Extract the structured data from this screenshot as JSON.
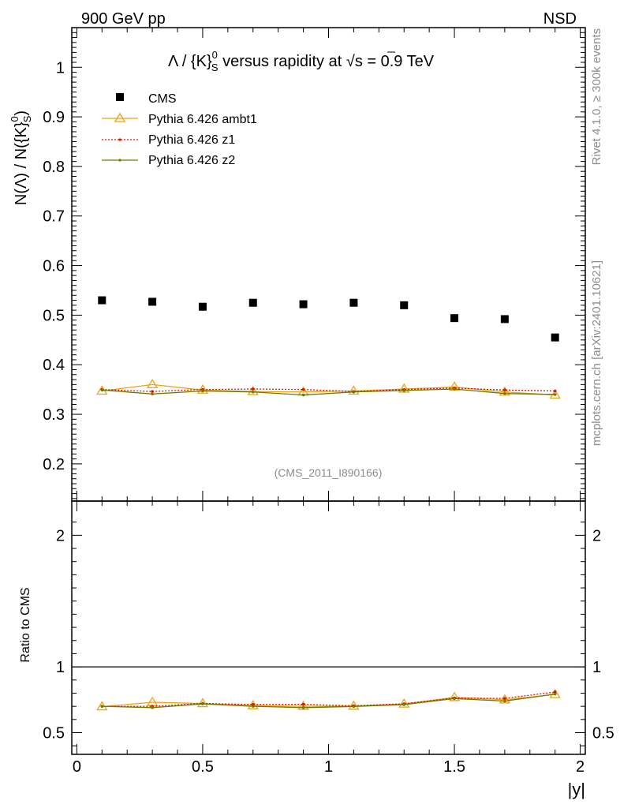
{
  "header": {
    "left": "900 GeV pp",
    "right": "NSD"
  },
  "side_labels": {
    "rivet": "Rivet 4.1.0, ≥ 300k events",
    "mcplots": "mcplots.cern.ch [arXiv:2401.10621]"
  },
  "analysis_id": "(CMS_2011_I890166)",
  "colors": {
    "cms": "#000000",
    "ambt1": "#e8a317",
    "z1": "#dd1100",
    "z2": "#6b7a00"
  },
  "chart_data": [
    {
      "type": "scatter",
      "panel": "main",
      "title": "Λ / {K}⁰ₛ versus rapidity at √s = 0.9 TeV",
      "title_parts": {
        "a": "Λ / {K}",
        "sup": "0",
        "sub": "S",
        "b": " versus rapidity at ",
        "sqrt": "√",
        "c": "s = 0.9 TeV"
      },
      "ylabel": "N(Λ)  /  N({K}⁰ₛ)",
      "ylabel_parts": {
        "a": "N(Λ)  /  N({K}",
        "sup": "0",
        "sub": "S",
        "b": ")"
      },
      "xlabel": "|y|",
      "xlim": [
        -0.02,
        2.02
      ],
      "ylim": [
        0.125,
        1.08
      ],
      "yticks": [
        0.2,
        0.3,
        0.4,
        0.5,
        0.6,
        0.7,
        0.8,
        0.9,
        1
      ],
      "ytick_labels": [
        "0.2",
        "0.3",
        "0.4",
        "0.5",
        "0.6",
        "0.7",
        "0.8",
        "0.9",
        "1"
      ],
      "x": [
        0.1,
        0.3,
        0.5,
        0.7,
        0.9,
        1.1,
        1.3,
        1.5,
        1.7,
        1.9
      ],
      "series": [
        {
          "name": "CMS",
          "key": "cms",
          "values": [
            0.53,
            0.527,
            0.517,
            0.525,
            0.522,
            0.525,
            0.52,
            0.494,
            0.492,
            0.455
          ]
        },
        {
          "name": "Pythia 6.426 ambt1",
          "key": "ambt1",
          "values": [
            0.347,
            0.36,
            0.349,
            0.346,
            0.345,
            0.347,
            0.351,
            0.355,
            0.345,
            0.339
          ]
        },
        {
          "name": "Pythia 6.426 z1",
          "key": "z1",
          "values": [
            0.35,
            0.346,
            0.35,
            0.351,
            0.35,
            0.346,
            0.35,
            0.353,
            0.349,
            0.347
          ]
        },
        {
          "name": "Pythia 6.426 z2",
          "key": "z2",
          "values": [
            0.349,
            0.341,
            0.347,
            0.345,
            0.339,
            0.345,
            0.348,
            0.351,
            0.342,
            0.34
          ]
        }
      ]
    },
    {
      "type": "line",
      "panel": "ratio",
      "ylabel": "Ratio to CMS",
      "xlabel": "|y|",
      "xlim": [
        -0.02,
        2.02
      ],
      "ylim": [
        0.335,
        2.26
      ],
      "yticks": [
        0.5,
        1,
        2
      ],
      "ytick_labels": [
        "0.5",
        "1",
        "2"
      ],
      "xticks": [
        0,
        0.5,
        1,
        1.5,
        2
      ],
      "xtick_labels": [
        "0",
        "0.5",
        "1",
        "1.5",
        "2"
      ],
      "reference_line": 1,
      "x": [
        0.1,
        0.3,
        0.5,
        0.7,
        0.9,
        1.1,
        1.3,
        1.5,
        1.7,
        1.9
      ],
      "series": [
        {
          "name": "Pythia 6.426 ambt1",
          "key": "ambt1",
          "values": [
            0.697,
            0.731,
            0.721,
            0.705,
            0.7,
            0.702,
            0.718,
            0.768,
            0.75,
            0.79
          ]
        },
        {
          "name": "Pythia 6.426 z1",
          "key": "z1",
          "values": [
            0.7,
            0.7,
            0.722,
            0.714,
            0.715,
            0.704,
            0.719,
            0.764,
            0.76,
            0.809
          ]
        },
        {
          "name": "Pythia 6.426 z2",
          "key": "z2",
          "values": [
            0.7,
            0.69,
            0.718,
            0.7,
            0.69,
            0.699,
            0.713,
            0.759,
            0.74,
            0.793
          ]
        }
      ]
    }
  ]
}
